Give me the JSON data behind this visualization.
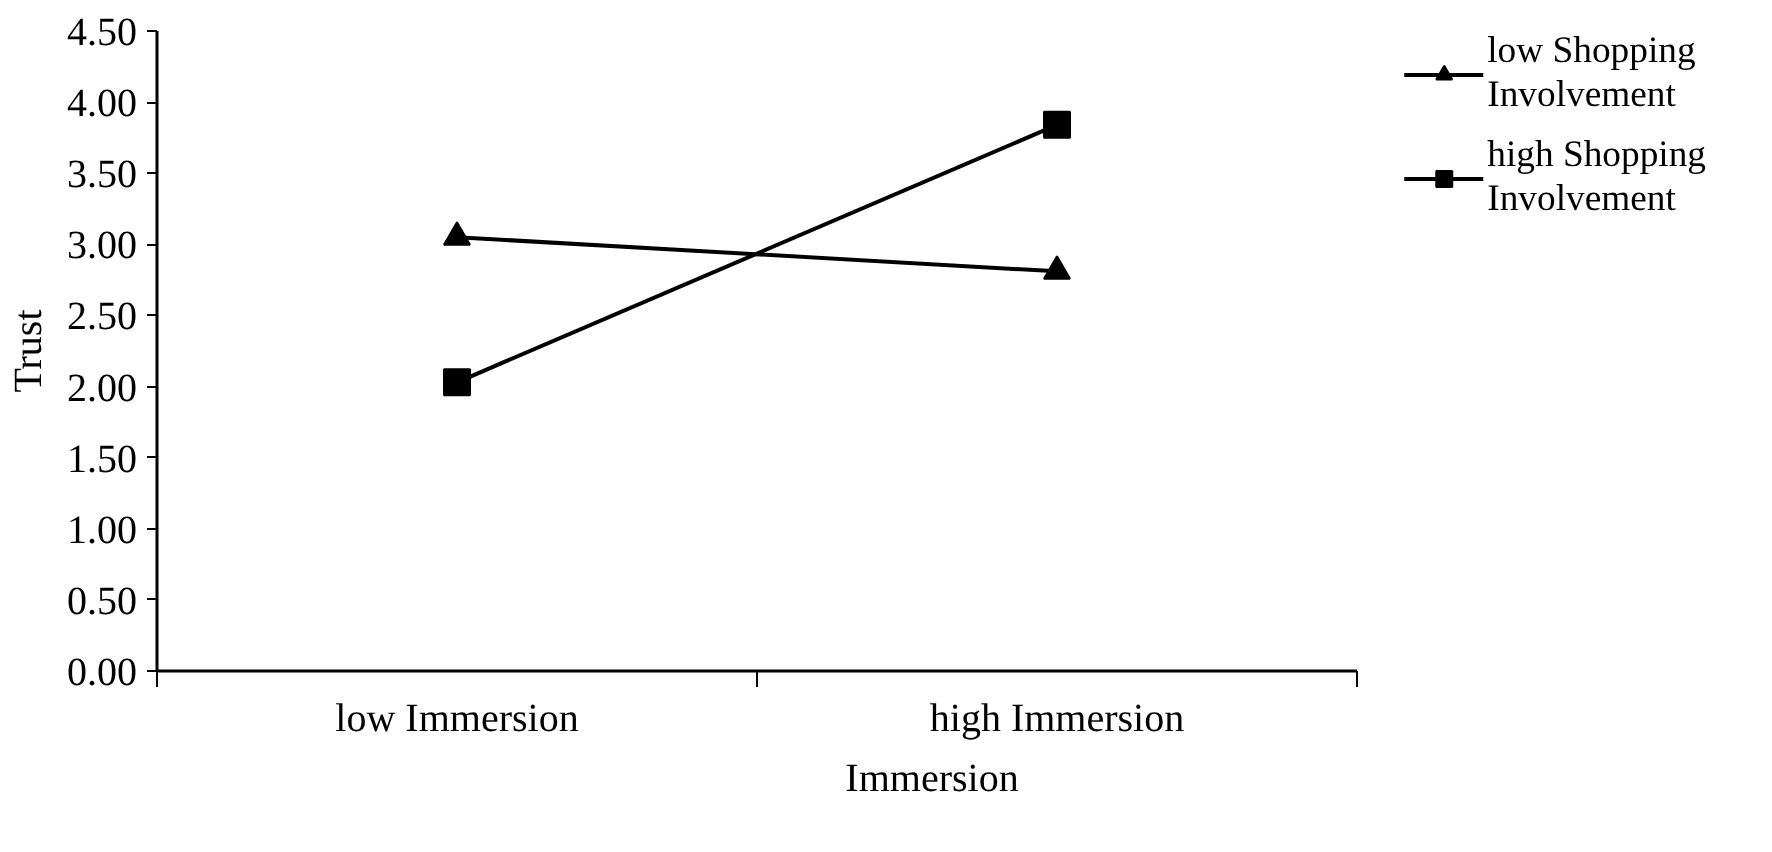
{
  "chart_data": {
    "type": "line",
    "xlabel": "Immersion",
    "ylabel": "Trust",
    "categories": [
      "low Immersion",
      "high Immersion"
    ],
    "series": [
      {
        "name": "low Shopping Involvement",
        "color": "#000000",
        "marker": "triangle",
        "values": [
          3.05,
          2.81
        ]
      },
      {
        "name": "high Shopping Involvement",
        "color": "#000000",
        "marker": "square",
        "values": [
          2.03,
          3.84
        ]
      }
    ],
    "ylim": [
      0,
      4.5
    ],
    "yticks": [
      {
        "value": 0,
        "label": "0.00"
      },
      {
        "value": 0.5,
        "label": "0.50"
      },
      {
        "value": 1,
        "label": "1.00"
      },
      {
        "value": 1.5,
        "label": "1.50"
      },
      {
        "value": 2,
        "label": "2.00"
      },
      {
        "value": 2.5,
        "label": "2.50"
      },
      {
        "value": 3,
        "label": "3.00"
      },
      {
        "value": 3.5,
        "label": "3.50"
      },
      {
        "value": 4,
        "label": "4.00"
      },
      {
        "value": 4.5,
        "label": "4.50"
      }
    ],
    "grid": false,
    "legend": "top right",
    "line_style": "solid"
  }
}
